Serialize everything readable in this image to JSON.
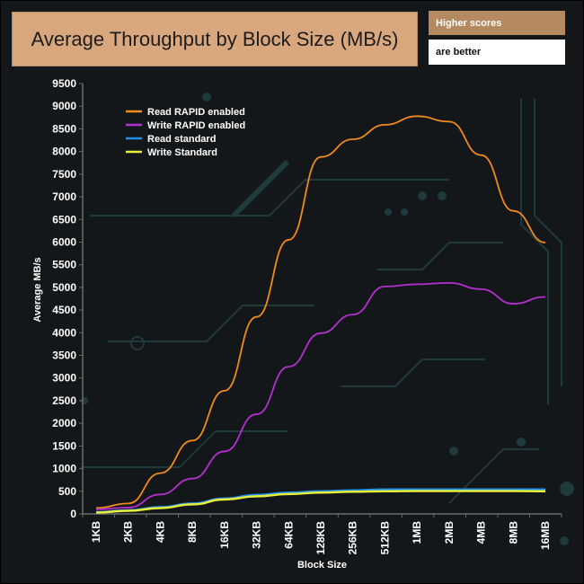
{
  "header": {
    "title": "Average Throughput by Block Size (MB/s)",
    "badge_top": "Higher scores",
    "badge_bottom": "are better"
  },
  "chart_data": {
    "type": "line",
    "title": "Average Throughput by Block Size (MB/s)",
    "xlabel": "Block Size",
    "ylabel": "Average MB/s",
    "ylim": [
      0,
      9500
    ],
    "ytick_step": 500,
    "grid": false,
    "legend_position": "top-left",
    "categories": [
      "1KB",
      "2KB",
      "4KB",
      "8KB",
      "16KB",
      "32KB",
      "64KB",
      "128KB",
      "256KB",
      "512KB",
      "1MB",
      "2MB",
      "4MB",
      "8MB",
      "16MB"
    ],
    "series": [
      {
        "name": "Read RAPID enabled",
        "color": "#f08a1c",
        "values": [
          130,
          230,
          900,
          1620,
          2720,
          4350,
          6050,
          7880,
          8270,
          8590,
          8780,
          8660,
          7920,
          6690,
          5990
        ]
      },
      {
        "name": "Write RAPID enabled",
        "color": "#b42fd0",
        "values": [
          100,
          140,
          430,
          780,
          1380,
          2200,
          3250,
          3990,
          4400,
          5020,
          5070,
          5100,
          4960,
          4640,
          4790
        ]
      },
      {
        "name": "Read standard",
        "color": "#1e8fe6",
        "values": [
          40,
          80,
          150,
          230,
          340,
          420,
          470,
          500,
          520,
          540,
          540,
          540,
          540,
          540,
          540
        ]
      },
      {
        "name": "Write Standard",
        "color": "#e9ef39",
        "values": [
          30,
          70,
          130,
          210,
          320,
          390,
          440,
          470,
          490,
          500,
          505,
          505,
          505,
          505,
          500
        ]
      }
    ]
  }
}
